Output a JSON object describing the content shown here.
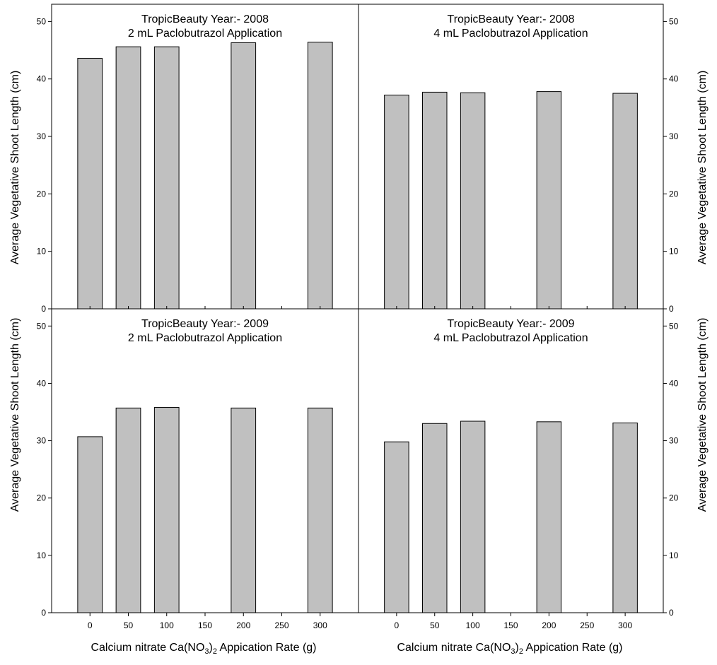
{
  "colors": {
    "bar_fill": "#c0c0c0",
    "stroke": "#000000",
    "background": "#ffffff"
  },
  "axes": {
    "x_label_prefix": "Calcium nitrate Ca(NO",
    "x_label_sub1": "3",
    "x_label_mid": ")",
    "x_label_sub2": "2",
    "x_label_suffix": " Appication Rate (g)",
    "y_label": "Average Vegetative Shoot Length (cm)",
    "x_ticks": [
      "0",
      "50",
      "100",
      "150",
      "200",
      "250",
      "300"
    ],
    "y_ticks": [
      "0",
      "10",
      "20",
      "30",
      "40",
      "50"
    ]
  },
  "chart_data": [
    {
      "type": "bar",
      "title": "TropicBeauty   Year:-  2008",
      "subtitle": "2 mL Paclobutrazol Application",
      "x": [
        0,
        50,
        100,
        200,
        300
      ],
      "values": [
        43.6,
        45.6,
        45.6,
        46.3,
        46.4
      ],
      "xlim": [
        -50,
        350
      ],
      "ylim": [
        0,
        53
      ],
      "grid": false
    },
    {
      "type": "bar",
      "title": "TropicBeauty   Year:-  2008",
      "subtitle": "4 mL Paclobutrazol Application",
      "x": [
        0,
        50,
        100,
        200,
        300
      ],
      "values": [
        37.2,
        37.7,
        37.6,
        37.8,
        37.5
      ],
      "xlim": [
        -50,
        350
      ],
      "ylim": [
        0,
        53
      ],
      "grid": false
    },
    {
      "type": "bar",
      "title": "TropicBeauty   Year:-  2009",
      "subtitle": "2 mL Paclobutrazol Application",
      "x": [
        0,
        50,
        100,
        200,
        300
      ],
      "values": [
        30.7,
        35.7,
        35.8,
        35.7,
        35.7
      ],
      "xlim": [
        -50,
        350
      ],
      "ylim": [
        0,
        53
      ],
      "grid": false
    },
    {
      "type": "bar",
      "title": "TropicBeauty   Year:-  2009",
      "subtitle": "4 mL Paclobutrazol Application",
      "x": [
        0,
        50,
        100,
        200,
        300
      ],
      "values": [
        29.8,
        33.0,
        33.4,
        33.3,
        33.1
      ],
      "xlim": [
        -50,
        350
      ],
      "ylim": [
        0,
        53
      ],
      "grid": false
    }
  ]
}
